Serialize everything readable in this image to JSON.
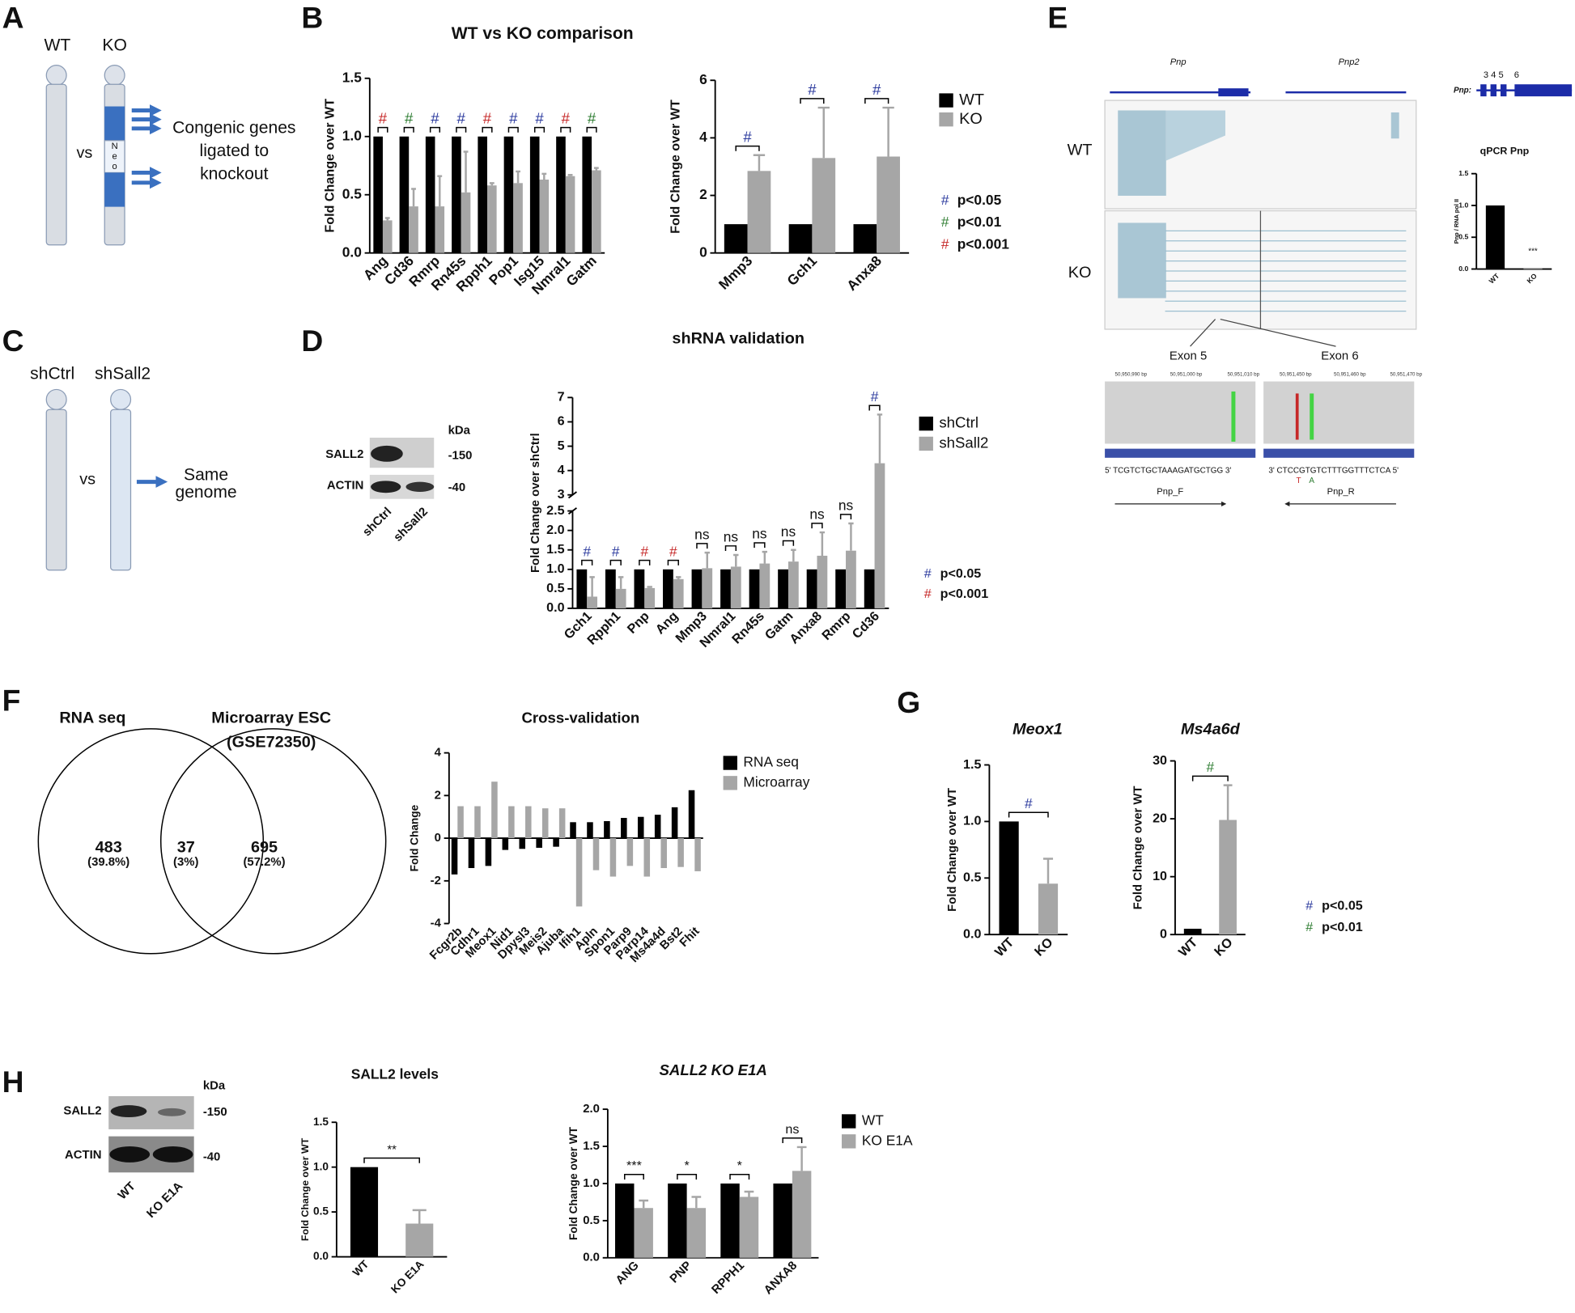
{
  "figure": {
    "panel_labels": [
      "A",
      "B",
      "C",
      "D",
      "E",
      "F",
      "G",
      "H"
    ],
    "panel_a": {
      "wt": "WT",
      "ko": "KO",
      "vs": "vs",
      "neo": [
        "N",
        "e",
        "o"
      ],
      "note": [
        "Congenic genes",
        "ligated to",
        "knockout"
      ]
    },
    "panel_c": {
      "ctrl": "shCtrl",
      "kd": "shSall2",
      "vs": "vs",
      "note": [
        "Same",
        "genome"
      ]
    },
    "panel_d_blot": {
      "rows": [
        "SALL2",
        "ACTIN"
      ],
      "unit": "kDa",
      "sizes": [
        "-150",
        "-40"
      ],
      "lanes": [
        "shCtrl",
        "shSall2"
      ]
    },
    "panel_e": {
      "genes": [
        "Pnp",
        "Pnp2"
      ],
      "tracks": [
        "WT",
        "KO"
      ],
      "exons": [
        "Exon 5",
        "Exon 6"
      ],
      "coords": [
        "50,950,990 bp",
        "50,951,000 bp",
        "50,951,010 bp",
        "50,951,450 bp",
        "50,951,460 bp",
        "50,951,470 bp"
      ],
      "sequences": [
        "5'  TCGTCTGCTAAAGATGCTGG  3'",
        "3'  CTCCGTGTCTTTGGTTTCTCA  5'"
      ],
      "mismatch": [
        "T",
        "A"
      ],
      "primers": [
        "Pnp_F",
        "Pnp_R"
      ],
      "gene_model": "Pnp:",
      "gene_model_exons": [
        "3 4 5",
        "6"
      ]
    },
    "panel_f_venn": {
      "sets": [
        "RNA seq",
        "Microarray ESC",
        "(GSE72350)"
      ],
      "regions": [
        {
          "count": "483",
          "percent": "(39.8%)"
        },
        {
          "count": "37",
          "percent": "(3%)"
        },
        {
          "count": "695",
          "percent": "(57.2%)"
        }
      ]
    },
    "panel_h_blot": {
      "rows": [
        "SALL2",
        "ACTIN"
      ],
      "unit": "kDa",
      "sizes": [
        "-150",
        "-40"
      ],
      "lanes": [
        "WT",
        "KO E1A"
      ]
    }
  },
  "chart_data": [
    {
      "type": "bar",
      "title": "WT vs KO comparison",
      "ylabel": "Fold Change over WT",
      "categories": [
        "Ang",
        "Cd36",
        "Rmrp",
        "Rn45s",
        "Rpph1",
        "Pop1",
        "Isg15",
        "Nmral1",
        "Gatm"
      ],
      "series": [
        {
          "color": "#000000",
          "values": [
            1,
            1,
            1,
            1,
            1,
            1,
            1,
            1,
            1
          ]
        },
        {
          "color": "#a6a6a6",
          "values": [
            0.28,
            0.4,
            0.4,
            0.52,
            0.58,
            0.6,
            0.63,
            0.66,
            0.71
          ],
          "errors": [
            0.02,
            0.15,
            0.26,
            0.35,
            0.02,
            0.1,
            0.05,
            0.01,
            0.02
          ]
        }
      ],
      "ylim": [
        0,
        1.5
      ],
      "yticks": [
        {
          "value": 0,
          "label": "0.0"
        },
        {
          "value": 0.5,
          "label": "0.5"
        },
        {
          "value": 1,
          "label": "1.0"
        },
        {
          "value": 1.5,
          "label": "1.5"
        }
      ],
      "significance": [
        {
          "label": "#",
          "color": "#c62828"
        },
        {
          "label": "#",
          "color": "#2e7d32"
        },
        {
          "label": "#",
          "color": "#2b3a9e"
        },
        {
          "label": "#",
          "color": "#2b3a9e"
        },
        {
          "label": "#",
          "color": "#c62828"
        },
        {
          "label": "#",
          "color": "#2b3a9e"
        },
        {
          "label": "#",
          "color": "#2b3a9e"
        },
        {
          "label": "#",
          "color": "#c62828"
        },
        {
          "label": "#",
          "color": "#2e7d32"
        }
      ]
    },
    {
      "type": "bar",
      "ylabel": "Fold Change over WT",
      "categories": [
        "Mmp3",
        "Gch1",
        "Anxa8"
      ],
      "series": [
        {
          "name": "WT",
          "color": "#000000",
          "values": [
            1,
            1,
            1
          ]
        },
        {
          "name": "KO",
          "color": "#a6a6a6",
          "values": [
            2.85,
            3.3,
            3.35
          ],
          "errors": [
            0.55,
            1.75,
            1.7
          ]
        }
      ],
      "ylim": [
        0,
        6
      ],
      "yticks": [
        0,
        2,
        4,
        6
      ],
      "legend": "right",
      "significance": [
        {
          "label": "#",
          "color": "#2b3a9e"
        },
        {
          "label": "#",
          "color": "#2b3a9e"
        },
        {
          "label": "#",
          "color": "#2b3a9e"
        }
      ],
      "significance_legend": [
        {
          "symbol": "#",
          "color": "#2b3a9e",
          "label": "p<0.05"
        },
        {
          "symbol": "#",
          "color": "#2e7d32",
          "label": "p<0.01"
        },
        {
          "symbol": "#",
          "color": "#c62828",
          "label": "p<0.001"
        }
      ]
    },
    {
      "type": "bar",
      "title": "shRNA validation",
      "ylabel": "Fold Change over shCtrl",
      "categories": [
        "Gch1",
        "Rpph1",
        "Pnp",
        "Ang",
        "Mmp3",
        "Nmral1",
        "Rn45s",
        "Gatm",
        "Anxa8",
        "Rmrp",
        "Cd36"
      ],
      "series": [
        {
          "name": "shCtrl",
          "color": "#000000",
          "values": [
            1,
            1,
            1,
            1,
            1,
            1,
            1,
            1,
            1,
            1,
            1
          ]
        },
        {
          "name": "shSall2",
          "color": "#a6a6a6",
          "values": [
            0.3,
            0.5,
            0.52,
            0.75,
            1.03,
            1.07,
            1.15,
            1.2,
            1.35,
            1.48,
            4.3
          ],
          "errors": [
            0.5,
            0.3,
            0.03,
            0.05,
            0.4,
            0.3,
            0.3,
            0.3,
            0.6,
            0.7,
            2.0
          ]
        }
      ],
      "ylim": [
        0,
        7
      ],
      "ybreak": [
        2.5,
        3
      ],
      "yticks": [
        {
          "value": 0,
          "label": "0.0"
        },
        {
          "value": 0.5,
          "label": "0.5"
        },
        {
          "value": 1,
          "label": "1.0"
        },
        {
          "value": 1.5,
          "label": "1.5"
        },
        {
          "value": 2,
          "label": "2.0"
        },
        {
          "value": 2.5,
          "label": "2.5"
        },
        3,
        4,
        5,
        6,
        7
      ],
      "legend": "right",
      "significance": [
        {
          "label": "#",
          "color": "#2b3a9e"
        },
        {
          "label": "#",
          "color": "#2b3a9e"
        },
        {
          "label": "#",
          "color": "#c62828"
        },
        {
          "label": "#",
          "color": "#c62828"
        },
        {
          "label": "ns"
        },
        {
          "label": "ns"
        },
        {
          "label": "ns"
        },
        {
          "label": "ns"
        },
        {
          "label": "ns"
        },
        {
          "label": "ns"
        },
        {
          "label": "#",
          "color": "#2b3a9e"
        }
      ],
      "significance_legend": [
        {
          "symbol": "#",
          "color": "#2b3a9e",
          "label": "p<0.05"
        },
        {
          "symbol": "#",
          "color": "#c62828",
          "label": "p<0.001"
        }
      ]
    },
    {
      "type": "bar",
      "title": "Cross-validation",
      "ylabel": "Fold Change",
      "categories": [
        "Fcgr2b",
        "Cdhr1",
        "Meox1",
        "Nid1",
        "Dpysl3",
        "Meis2",
        "Ajuba",
        "Ifih1",
        "Apln",
        "Spon1",
        "Parp9",
        "Parp14",
        "Ms4a4d",
        "Bst2",
        "Fhit"
      ],
      "series": [
        {
          "name": "RNA seq",
          "color": "#000000",
          "values": [
            -1.7,
            -1.4,
            -1.3,
            -0.55,
            -0.5,
            -0.45,
            -0.4,
            0.75,
            0.75,
            0.8,
            0.95,
            1.0,
            1.1,
            1.45,
            2.25
          ]
        },
        {
          "name": "Microarray",
          "color": "#a6a6a6",
          "values": [
            1.5,
            1.5,
            2.65,
            1.5,
            1.5,
            1.4,
            1.4,
            -3.2,
            -1.5,
            -1.8,
            -1.3,
            -1.8,
            -1.4,
            -1.35,
            -1.55
          ]
        }
      ],
      "ylim": [
        -4,
        4
      ],
      "yticks": [
        -4,
        -2,
        0,
        2,
        4
      ],
      "legend": "right"
    },
    {
      "type": "bar",
      "title": "Meox1",
      "ylabel": "Fold Change over WT",
      "categories": [
        "WT",
        "KO"
      ],
      "values": [
        1,
        0.45
      ],
      "errors": [
        null,
        0.22
      ],
      "colors": [
        "#000000",
        "#a6a6a6"
      ],
      "ylim": [
        0,
        1.5
      ],
      "yticks": [
        {
          "value": 0,
          "label": "0.0"
        },
        {
          "value": 0.5,
          "label": "0.5"
        },
        {
          "value": 1,
          "label": "1.0"
        },
        {
          "value": 1.5,
          "label": "1.5"
        }
      ],
      "significance": {
        "label": "#",
        "color": "#2b3a9e"
      }
    },
    {
      "type": "bar",
      "title": "Ms4a6d",
      "ylabel": "Fold Change over WT",
      "categories": [
        "WT",
        "KO"
      ],
      "values": [
        1,
        19.8
      ],
      "errors": [
        null,
        6
      ],
      "colors": [
        "#000000",
        "#a6a6a6"
      ],
      "ylim": [
        0,
        30
      ],
      "yticks": [
        0,
        10,
        20,
        30
      ],
      "significance": {
        "label": "#",
        "color": "#2e7d32"
      },
      "significance_legend": [
        {
          "symbol": "#",
          "color": "#2b3a9e",
          "label": "p<0.05"
        },
        {
          "symbol": "#",
          "color": "#2e7d32",
          "label": "p<0.01"
        }
      ]
    },
    {
      "type": "bar",
      "title": "qPCR Pnp",
      "ylabel": "Pnp / RNA pol II",
      "categories": [
        "WT",
        "KO"
      ],
      "values": [
        1,
        0.01
      ],
      "colors": [
        "#000000",
        "#a6a6a6"
      ],
      "ylim": [
        0,
        1.5
      ],
      "yticks": [
        {
          "value": 0,
          "label": "0.0"
        },
        {
          "value": 0.5,
          "label": "0.5"
        },
        {
          "value": 1,
          "label": "1.0"
        },
        {
          "value": 1.5,
          "label": "1.5"
        }
      ],
      "significance": {
        "label": "***",
        "bracket": false
      }
    },
    {
      "type": "bar",
      "title": "SALL2 levels",
      "ylabel": "Fold Change over WT",
      "categories": [
        "WT",
        "KO E1A"
      ],
      "values": [
        1,
        0.37
      ],
      "errors": [
        null,
        0.15
      ],
      "colors": [
        "#000000",
        "#a6a6a6"
      ],
      "ylim": [
        0,
        1.5
      ],
      "yticks": [
        {
          "value": 0,
          "label": "0.0"
        },
        {
          "value": 0.5,
          "label": "0.5"
        },
        {
          "value": 1,
          "label": "1.0"
        },
        {
          "value": 1.5,
          "label": "1.5"
        }
      ],
      "significance": {
        "label": "**"
      }
    },
    {
      "type": "bar",
      "title": "SALL2 KO E1A",
      "ylabel": "Fold Change over WT",
      "categories": [
        "ANG",
        "PNP",
        "RPPH1",
        "ANXA8"
      ],
      "series": [
        {
          "name": "WT",
          "color": "#000000",
          "values": [
            1,
            1,
            1,
            1
          ]
        },
        {
          "name": "KO E1A",
          "color": "#a6a6a6",
          "values": [
            0.67,
            0.67,
            0.82,
            1.17
          ],
          "errors": [
            0.1,
            0.15,
            0.07,
            0.32
          ]
        }
      ],
      "ylim": [
        0,
        2
      ],
      "yticks": [
        {
          "value": 0,
          "label": "0.0"
        },
        {
          "value": 0.5,
          "label": "0.5"
        },
        {
          "value": 1,
          "label": "1.0"
        },
        {
          "value": 1.5,
          "label": "1.5"
        },
        {
          "value": 2,
          "label": "2.0"
        }
      ],
      "legend": "right",
      "significance": [
        {
          "label": "***"
        },
        {
          "label": "*"
        },
        {
          "label": "*"
        },
        {
          "label": "ns"
        }
      ]
    }
  ]
}
